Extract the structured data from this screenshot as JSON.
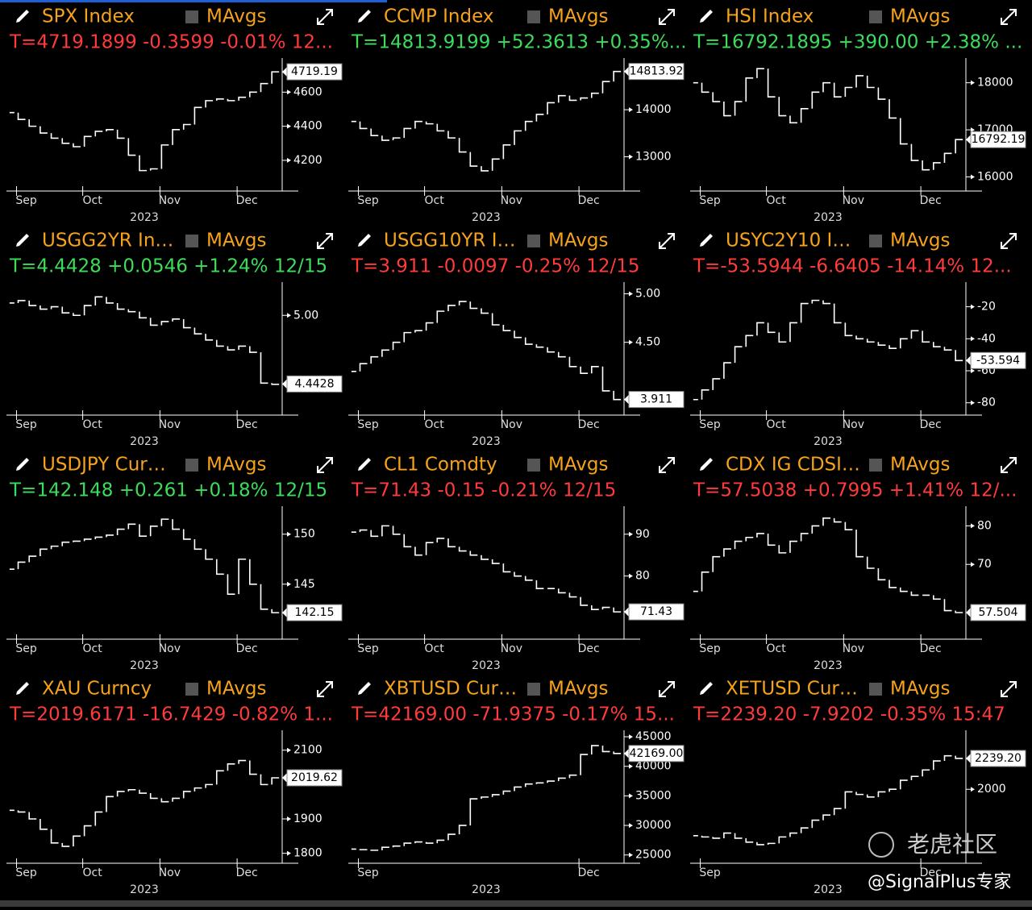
{
  "chart_data": [
    {
      "type": "line",
      "title": "SPX Index",
      "legend_label": "MAvgs",
      "quote": "T=4719.1899 -0.3599 -0.01% 12...",
      "quote_color": "#ff3b3b",
      "color": "#ffffff",
      "categories": [
        null,
        "Sep",
        null,
        null,
        null,
        null,
        null,
        "Oct",
        null,
        null,
        null,
        null,
        null,
        null,
        "Nov",
        null,
        null,
        null,
        null,
        null,
        null,
        "Dec",
        null,
        null,
        null
      ],
      "values": [
        4480,
        4440,
        4400,
        4360,
        4330,
        4300,
        4280,
        4340,
        4370,
        4380,
        4330,
        4230,
        4140,
        4150,
        4290,
        4380,
        4410,
        4510,
        4550,
        4560,
        4550,
        4570,
        4600,
        4650,
        4719
      ],
      "ylim": [
        4020,
        4800
      ],
      "yticks": [
        4200,
        4400,
        4600
      ],
      "current": {
        "value": 4719.19,
        "label": "4719.19"
      },
      "xlabel": "2023"
    },
    {
      "type": "line",
      "title": "CCMP Index",
      "legend_label": "MAvgs",
      "quote": "T=14813.9199 +52.3613 +0.35%...",
      "quote_color": "#3ddc5a",
      "color": "#ffffff",
      "categories": [
        null,
        "Sep",
        null,
        null,
        null,
        null,
        null,
        "Oct",
        null,
        null,
        null,
        null,
        null,
        null,
        "Nov",
        null,
        null,
        null,
        null,
        null,
        null,
        "Dec",
        null,
        null,
        null
      ],
      "values": [
        13750,
        13600,
        13450,
        13350,
        13400,
        13600,
        13750,
        13700,
        13550,
        13400,
        13100,
        12800,
        12700,
        12950,
        13250,
        13550,
        13750,
        13900,
        14150,
        14300,
        14200,
        14250,
        14350,
        14600,
        14814
      ],
      "ylim": [
        12270,
        15100
      ],
      "yticks": [
        13000,
        14000
      ],
      "current": {
        "value": 14813.92,
        "label": "14813.92"
      },
      "xlabel": "2023"
    },
    {
      "type": "line",
      "title": "HSI Index",
      "legend_label": "MAvgs",
      "quote": "T=16792.1895 +390.00 +2.38% ...",
      "quote_color": "#3ddc5a",
      "color": "#ffffff",
      "categories": [
        null,
        "Sep",
        null,
        null,
        null,
        null,
        null,
        "Oct",
        null,
        null,
        null,
        null,
        null,
        null,
        "Nov",
        null,
        null,
        null,
        null,
        null,
        null,
        "Dec",
        null,
        null,
        null
      ],
      "values": [
        18000,
        17800,
        17600,
        17300,
        17600,
        18100,
        18300,
        17700,
        17300,
        17150,
        17450,
        17800,
        18000,
        17700,
        17900,
        18150,
        17900,
        17650,
        17250,
        16700,
        16350,
        16150,
        16300,
        16500,
        16792
      ],
      "ylim": [
        15700,
        18525
      ],
      "yticks": [
        16000,
        17000,
        18000
      ],
      "current": {
        "value": 16792.19,
        "label": "16792.19"
      },
      "xlabel": "2023"
    },
    {
      "type": "line",
      "title": "USGG2YR In…",
      "legend_label": "MAvgs",
      "quote": "T=4.4428 +0.0546 +1.24% 12/15",
      "quote_color": "#3ddc5a",
      "color": "#ffffff",
      "categories": [
        null,
        "Sep",
        null,
        null,
        null,
        null,
        null,
        "Oct",
        null,
        null,
        null,
        null,
        null,
        null,
        "Nov",
        null,
        null,
        null,
        null,
        null,
        null,
        "Dec",
        null,
        null,
        null
      ],
      "values": [
        5.1,
        5.12,
        5.08,
        5.05,
        5.07,
        5.02,
        5.0,
        5.08,
        5.15,
        5.1,
        5.05,
        5.03,
        4.98,
        4.92,
        4.95,
        4.97,
        4.9,
        4.85,
        4.8,
        4.75,
        4.72,
        4.75,
        4.7,
        4.45,
        4.44
      ],
      "ylim": [
        4.19,
        5.27
      ],
      "yticks": [
        {
          "value": 5,
          "label": "5.00"
        }
      ],
      "current": {
        "value": 4.4428,
        "label": "4.4428"
      },
      "xlabel": "2023"
    },
    {
      "type": "line",
      "title": "USGG10YR I…",
      "legend_label": "MAvgs",
      "quote": "T=3.911 -0.0097 -0.25% 12/15",
      "quote_color": "#ff3b3b",
      "color": "#ffffff",
      "categories": [
        null,
        "Sep",
        null,
        null,
        null,
        null,
        null,
        "Oct",
        null,
        null,
        null,
        null,
        null,
        null,
        "Nov",
        null,
        null,
        null,
        null,
        null,
        null,
        "Dec",
        null,
        null,
        null
      ],
      "values": [
        4.2,
        4.28,
        4.35,
        4.42,
        4.5,
        4.6,
        4.62,
        4.7,
        4.82,
        4.88,
        4.92,
        4.85,
        4.8,
        4.68,
        4.62,
        4.55,
        4.48,
        4.45,
        4.4,
        4.35,
        4.25,
        4.18,
        4.25,
        4.0,
        3.91
      ],
      "ylim": [
        3.75,
        5.12
      ],
      "yticks": [
        {
          "value": 4.5,
          "label": "4.50"
        },
        {
          "value": 5,
          "label": "5.00"
        }
      ],
      "current": {
        "value": 3.911,
        "label": "3.911"
      },
      "xlabel": "2023"
    },
    {
      "type": "line",
      "title": "USYC2Y10 I…",
      "legend_label": "MAvgs",
      "quote": "T=-53.5944 -6.6405 -14.14% 12...",
      "quote_color": "#ff3b3b",
      "color": "#ffffff",
      "categories": [
        null,
        "Sep",
        null,
        null,
        null,
        null,
        null,
        "Oct",
        null,
        null,
        null,
        null,
        null,
        null,
        "Nov",
        null,
        null,
        null,
        null,
        null,
        null,
        "Dec",
        null,
        null,
        null
      ],
      "values": [
        -78,
        -72,
        -65,
        -55,
        -45,
        -38,
        -30,
        -36,
        -42,
        -30,
        -18,
        -16,
        -18,
        -30,
        -38,
        -40,
        -42,
        -44,
        -46,
        -40,
        -35,
        -42,
        -45,
        -47,
        -53.59
      ],
      "ylim": [
        -87.7,
        -4.6
      ],
      "yticks": [
        -80,
        -60,
        -40,
        -20
      ],
      "current": {
        "value": -53.594,
        "label": "-53.594"
      },
      "xlabel": "2023"
    },
    {
      "type": "line",
      "title": "USDJPY Cur…",
      "legend_label": "MAvgs",
      "quote": "T=142.148 +0.261 +0.18% 12/15",
      "quote_color": "#3ddc5a",
      "color": "#ffffff",
      "categories": [
        null,
        "Sep",
        null,
        null,
        null,
        null,
        null,
        "Oct",
        null,
        null,
        null,
        null,
        null,
        null,
        "Nov",
        null,
        null,
        null,
        null,
        null,
        null,
        "Dec",
        null,
        null,
        null
      ],
      "values": [
        146.5,
        147.2,
        147.8,
        148.5,
        148.8,
        149.2,
        149.3,
        149.5,
        149.7,
        149.9,
        150.5,
        151.0,
        149.8,
        150.8,
        151.5,
        150.5,
        149.5,
        148.5,
        147.5,
        146,
        144,
        147.5,
        145,
        142.5,
        142.15
      ],
      "ylim": [
        139.5,
        152.8
      ],
      "yticks": [
        145,
        150
      ],
      "current": {
        "value": 142.15,
        "label": "142.15"
      },
      "xlabel": "2023"
    },
    {
      "type": "line",
      "title": "CL1 Comdty",
      "legend_label": "MAvgs",
      "quote": "T=71.43 -0.15 -0.21% 12/15",
      "quote_color": "#ff3b3b",
      "color": "#ffffff",
      "categories": [
        null,
        "Sep",
        null,
        null,
        null,
        null,
        null,
        "Oct",
        null,
        null,
        null,
        null,
        null,
        null,
        "Nov",
        null,
        null,
        null,
        null,
        null,
        null,
        "Dec",
        null,
        null,
        null
      ],
      "values": [
        90.5,
        91,
        89.5,
        92,
        90,
        87,
        85,
        88,
        89,
        87,
        86,
        85,
        84,
        83,
        81,
        80,
        79,
        77,
        77,
        76,
        75,
        73,
        72,
        72.5,
        71.43
      ],
      "ylim": [
        64.9,
        96.7
      ],
      "yticks": [
        80,
        90
      ],
      "current": {
        "value": 71.43,
        "label": "71.43"
      },
      "xlabel": "2023"
    },
    {
      "type": "line",
      "title": "CDX IG CDSI…",
      "legend_label": "MAvgs",
      "quote": "T=57.5038 +0.7995 +1.41% 12/...",
      "quote_color": "#ff3b3b",
      "color": "#ffffff",
      "categories": [
        null,
        "Sep",
        null,
        null,
        null,
        null,
        null,
        "Oct",
        null,
        null,
        null,
        null,
        null,
        null,
        "Nov",
        null,
        null,
        null,
        null,
        null,
        null,
        "Dec",
        null,
        null,
        null
      ],
      "values": [
        63,
        68,
        72,
        74,
        76,
        77,
        78,
        75,
        73,
        76,
        78,
        80,
        82,
        81,
        79,
        72,
        69,
        66,
        64,
        63,
        62,
        62,
        61,
        58,
        57.5
      ],
      "ylim": [
        50.6,
        85.1
      ],
      "yticks": [
        70,
        80
      ],
      "current": {
        "value": 57.504,
        "label": "57.504"
      },
      "xlabel": "2023"
    },
    {
      "type": "line",
      "title": "XAU Curncy",
      "legend_label": "MAvgs",
      "quote": "T=2019.6171 -16.7429 -0.82% 1...",
      "quote_color": "#ff3b3b",
      "color": "#ffffff",
      "categories": [
        null,
        "Sep",
        null,
        null,
        null,
        null,
        null,
        "Oct",
        null,
        null,
        null,
        null,
        null,
        null,
        "Nov",
        null,
        null,
        null,
        null,
        null,
        null,
        "Dec",
        null,
        null,
        null
      ],
      "values": [
        1925,
        1920,
        1900,
        1870,
        1830,
        1820,
        1850,
        1880,
        1920,
        1965,
        1980,
        1985,
        1975,
        1960,
        1950,
        1960,
        1980,
        1990,
        2000,
        2040,
        2060,
        2070,
        2030,
        2000,
        2019.62
      ],
      "ylim": [
        1771,
        2158
      ],
      "yticks": [
        1800,
        1900,
        2100
      ],
      "current": {
        "value": 2019.62,
        "label": "2019.62"
      },
      "xlabel": "2023"
    },
    {
      "type": "line",
      "title": "XBTUSD Cur…",
      "legend_label": "MAvgs",
      "quote": "T=42169.00 -71.9375 -0.17% 15...",
      "quote_color": "#ff3b3b",
      "color": "#ffffff",
      "categories": [
        null,
        "Sep",
        null,
        null,
        null,
        null,
        null,
        null,
        null,
        null,
        null,
        null,
        null,
        null,
        null,
        null,
        null,
        null,
        null,
        null,
        null,
        "Dec",
        null,
        null,
        null
      ],
      "values": [
        26000,
        25900,
        25800,
        26300,
        26500,
        27000,
        27200,
        27000,
        27500,
        28500,
        30000,
        34500,
        34800,
        35200,
        35800,
        36500,
        37000,
        37200,
        37500,
        38000,
        38500,
        42000,
        43500,
        42500,
        42169
      ],
      "ylim": [
        23600,
        46100
      ],
      "yticks": [
        25000,
        30000,
        35000,
        40000,
        45000
      ],
      "current": {
        "value": 42169,
        "label": "42169.00"
      },
      "xlabel": "2023"
    },
    {
      "type": "line",
      "title": "XETUSD Cur…",
      "legend_label": "MAvgs",
      "quote": "T=2239.20 -7.9202 -0.35% 15:47",
      "quote_color": "#ff3b3b",
      "color": "#ffffff",
      "categories": [
        null,
        "Sep",
        null,
        null,
        null,
        null,
        null,
        null,
        null,
        null,
        null,
        null,
        null,
        null,
        null,
        null,
        null,
        null,
        null,
        null,
        null,
        "Dec",
        null,
        null,
        null
      ],
      "values": [
        1640,
        1630,
        1620,
        1660,
        1620,
        1590,
        1570,
        1580,
        1630,
        1660,
        1700,
        1760,
        1800,
        1850,
        1980,
        1960,
        1940,
        1980,
        2000,
        2070,
        2100,
        2150,
        2220,
        2260,
        2239.2
      ],
      "ylim": [
        1426,
        2458
      ],
      "yticks": [
        2000
      ],
      "current": {
        "value": 2239.2,
        "label": "2239.20"
      },
      "xlabel": "2023"
    }
  ],
  "watermark": {
    "brand": "老虎社区",
    "handle": "@SignalPlus专家"
  }
}
